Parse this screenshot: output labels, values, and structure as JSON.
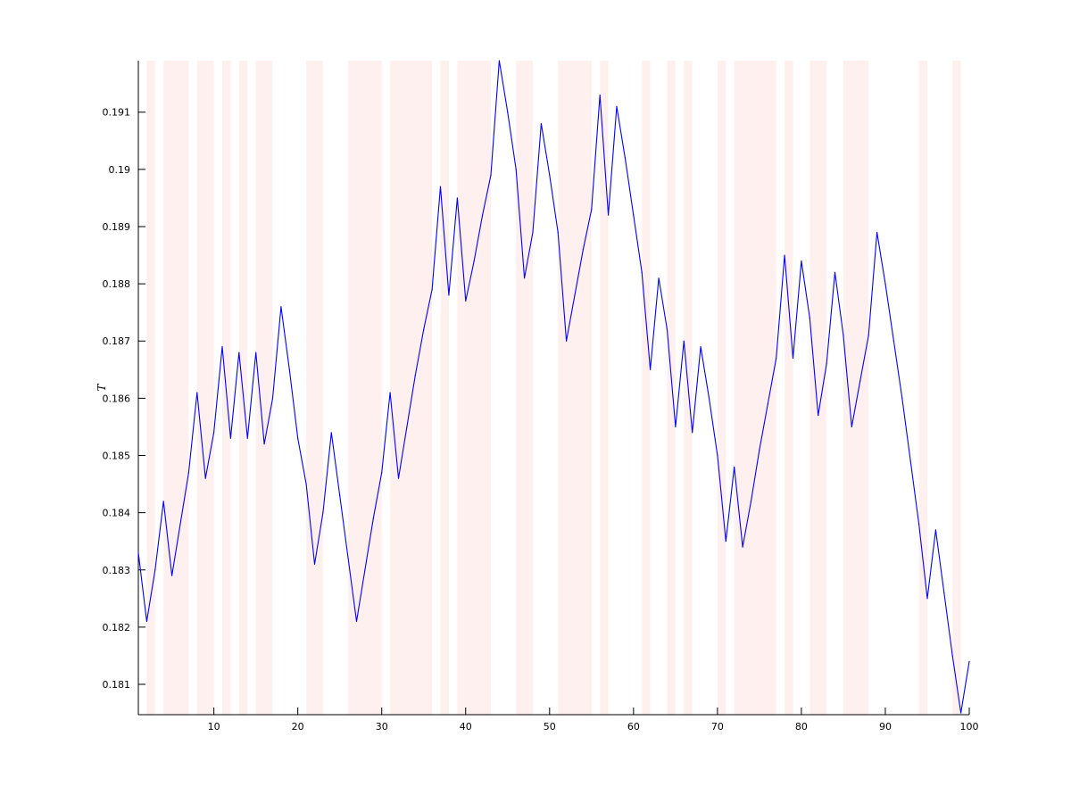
{
  "chart_data": {
    "type": "line",
    "title": "",
    "xlabel": "",
    "ylabel": "T",
    "xlim": [
      1,
      100
    ],
    "ylim": [
      0.18047,
      0.1919
    ],
    "grid": false,
    "x_ticks": [
      10,
      20,
      30,
      40,
      50,
      60,
      70,
      80,
      90,
      100
    ],
    "x_tick_labels": [
      "10",
      "20",
      "30",
      "40",
      "50",
      "60",
      "70",
      "80",
      "90",
      "100"
    ],
    "y_ticks": [
      0.181,
      0.182,
      0.183,
      0.184,
      0.185,
      0.186,
      0.187,
      0.188,
      0.189,
      0.19,
      0.191
    ],
    "y_tick_labels": [
      "0.181",
      "0.182",
      "0.183",
      "0.184",
      "0.185",
      "0.186",
      "0.187",
      "0.188",
      "0.189",
      "0.19",
      "0.191"
    ],
    "series_color": "#0000ff",
    "band_color": "#fff0f0",
    "x": [
      1,
      2,
      3,
      4,
      5,
      6,
      7,
      8,
      9,
      10,
      11,
      12,
      13,
      14,
      15,
      16,
      17,
      18,
      19,
      20,
      21,
      22,
      23,
      24,
      25,
      26,
      27,
      28,
      29,
      30,
      31,
      32,
      33,
      34,
      35,
      36,
      37,
      38,
      39,
      40,
      41,
      42,
      43,
      44,
      45,
      46,
      47,
      48,
      49,
      50,
      51,
      52,
      53,
      54,
      55,
      56,
      57,
      58,
      59,
      60,
      61,
      62,
      63,
      64,
      65,
      66,
      67,
      68,
      69,
      70,
      71,
      72,
      73,
      74,
      75,
      76,
      77,
      78,
      79,
      80,
      81,
      82,
      83,
      84,
      85,
      86,
      87,
      88,
      89,
      90,
      91,
      92,
      93,
      94,
      95,
      96,
      97,
      98,
      99,
      100
    ],
    "values": [
      0.1833,
      0.1821,
      0.183,
      0.1842,
      0.1829,
      0.1838,
      0.1847,
      0.1861,
      0.1846,
      0.1854,
      0.1869,
      0.1853,
      0.1868,
      0.1853,
      0.1868,
      0.1852,
      0.186,
      0.1876,
      0.1865,
      0.1853,
      0.1845,
      0.1831,
      0.184,
      0.1854,
      0.1843,
      0.1832,
      0.1821,
      0.183,
      0.1839,
      0.1847,
      0.1861,
      0.1846,
      0.1855,
      0.1864,
      0.1872,
      0.1879,
      0.1897,
      0.1878,
      0.1895,
      0.1877,
      0.1884,
      0.1892,
      0.1899,
      0.1919,
      0.191,
      0.19,
      0.1881,
      0.1889,
      0.1908,
      0.1899,
      0.1889,
      0.187,
      0.1878,
      0.1886,
      0.1893,
      0.1913,
      0.1892,
      0.1911,
      0.1902,
      0.1892,
      0.1882,
      0.1865,
      0.1881,
      0.1872,
      0.1855,
      0.187,
      0.1854,
      0.1869,
      0.186,
      0.185,
      0.1835,
      0.1848,
      0.1834,
      0.1842,
      0.1851,
      0.1859,
      0.1867,
      0.1885,
      0.1867,
      0.1884,
      0.1874,
      0.1857,
      0.1866,
      0.1882,
      0.1871,
      0.1855,
      0.1863,
      0.1871,
      0.1889,
      0.188,
      0.187,
      0.186,
      0.1849,
      0.1838,
      0.1825,
      0.1837,
      0.1826,
      0.1815,
      0.1805,
      0.1814
    ],
    "shaded_bands": [
      [
        2,
        3
      ],
      [
        4,
        7
      ],
      [
        8,
        10
      ],
      [
        11,
        12
      ],
      [
        13,
        14
      ],
      [
        15,
        17
      ],
      [
        21,
        23
      ],
      [
        26,
        30
      ],
      [
        31,
        36
      ],
      [
        37,
        38
      ],
      [
        39,
        43
      ],
      [
        46,
        48
      ],
      [
        51,
        55
      ],
      [
        56,
        57
      ],
      [
        61,
        62
      ],
      [
        64,
        65
      ],
      [
        66,
        67
      ],
      [
        70,
        71
      ],
      [
        72,
        77
      ],
      [
        78,
        79
      ],
      [
        81,
        83
      ],
      [
        85,
        88
      ],
      [
        94,
        95
      ],
      [
        98,
        99
      ]
    ]
  }
}
